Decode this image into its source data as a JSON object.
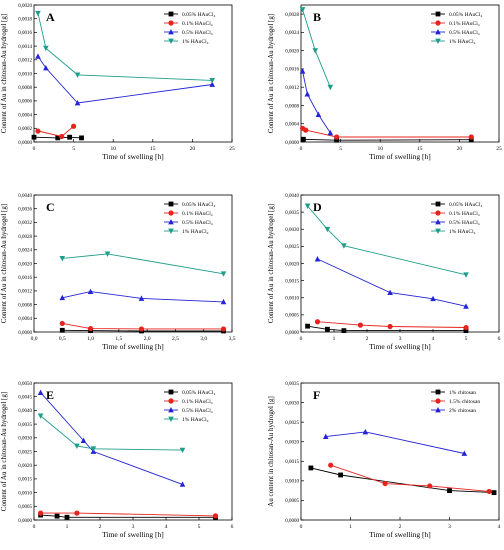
{
  "chart_data": [
    {
      "type": "line",
      "panel_label": "A",
      "xlabel": "Time of swelling [h]",
      "ylabel": "Content of Au in chitosan-Au hydrogel [g]",
      "xlim": [
        0,
        25
      ],
      "ylim": [
        0,
        0.002
      ],
      "xticks": [
        0,
        5,
        10,
        15,
        20,
        25
      ],
      "yticks": [
        0,
        0.0002,
        0.0004,
        0.0006,
        0.0008,
        0.001,
        0.0012,
        0.0014,
        0.0016,
        0.0018,
        0.002
      ],
      "ytick_labels": [
        "0,0000",
        "0,0002",
        "0,0004",
        "0,0006",
        "0,0008",
        "0,0010",
        "0,0012",
        "0,0014",
        "0,0016",
        "0,0018",
        "0,0020"
      ],
      "legend": "top-right",
      "series": [
        {
          "name": "0.05% HAuCl₄",
          "marker": "square",
          "color": "#000000",
          "x": [
            0,
            3,
            4.5,
            6
          ],
          "y": [
            7e-05,
            6e-05,
            7e-05,
            6e-05
          ]
        },
        {
          "name": "0.1% HAuCl₄",
          "marker": "circle",
          "color": "#e8231d",
          "x": [
            0.5,
            3.5,
            5
          ],
          "y": [
            0.00016,
            8e-05,
            0.00023
          ]
        },
        {
          "name": "0.5% HAuCl₄",
          "marker": "triangle-up",
          "color": "#2424d6",
          "x": [
            0.5,
            1.5,
            5.5,
            22.5
          ],
          "y": [
            0.00125,
            0.00108,
            0.00057,
            0.00084
          ]
        },
        {
          "name": "1% HAuCl₄",
          "marker": "triangle-down",
          "color": "#1e9e8a",
          "x": [
            0.5,
            1.5,
            5.5,
            22.5
          ],
          "y": [
            0.00188,
            0.00137,
            0.00098,
            0.0009
          ]
        }
      ]
    },
    {
      "type": "line",
      "panel_label": "B",
      "xlabel": "Time of swelling [h]",
      "ylabel": "Content of Au in chitosan-Au hydrogel [g]",
      "xlim": [
        0,
        25
      ],
      "ylim": [
        0,
        0.003
      ],
      "xticks": [
        0,
        5,
        10,
        15,
        20,
        25
      ],
      "yticks": [
        0,
        0.0004,
        0.0008,
        0.0012,
        0.0016,
        0.002,
        0.0024,
        0.0028
      ],
      "ytick_labels": [
        "0,0000",
        "0,0004",
        "0,0008",
        "0,0012",
        "0,0016",
        "0,0020",
        "0,0024",
        "0,0028"
      ],
      "legend": "top-right",
      "series": [
        {
          "name": "0.05% HAuCl₄",
          "marker": "square",
          "color": "#000000",
          "x": [
            0.3,
            4.5,
            21.5
          ],
          "y": [
            6e-05,
            4e-05,
            5e-05
          ]
        },
        {
          "name": "0.1% HAuCl₄",
          "marker": "circle",
          "color": "#e8231d",
          "x": [
            0.2,
            0.6,
            4.5,
            21.5
          ],
          "y": [
            0.0003,
            0.00026,
            0.00011,
            0.00011
          ]
        },
        {
          "name": "0.5% HAuCl₄",
          "marker": "triangle-up",
          "color": "#2424d6",
          "x": [
            0.2,
            0.8,
            2.2,
            3.7
          ],
          "y": [
            0.00155,
            0.00105,
            0.0006,
            0.0002
          ]
        },
        {
          "name": "1% HAuCl₄",
          "marker": "triangle-down",
          "color": "#1e9e8a",
          "x": [
            0.2,
            1.8,
            3.7
          ],
          "y": [
            0.0029,
            0.002,
            0.0012
          ]
        }
      ]
    },
    {
      "type": "line",
      "panel_label": "C",
      "xlabel": "Time of swelling [h]",
      "ylabel": "Content of Au in chitosan-Au hydrogel [g]",
      "xlim": [
        0,
        3.5
      ],
      "ylim": [
        0,
        0.004
      ],
      "xticks": [
        0,
        0.5,
        1,
        1.5,
        2,
        2.5,
        3,
        3.5
      ],
      "xtick_labels": [
        "0,0",
        "0,5",
        "1,0",
        "1,5",
        "2,0",
        "2,5",
        "3,0",
        "3,5"
      ],
      "yticks": [
        0,
        0.0004,
        0.0008,
        0.0012,
        0.0016,
        0.002,
        0.0024,
        0.0028,
        0.0032,
        0.0036,
        0.004
      ],
      "ytick_labels": [
        "0,0000",
        "0,0004",
        "0,0008",
        "0,0012",
        "0,0016",
        "0,0020",
        "0,0024",
        "0,0028",
        "0,0032",
        "0,0036",
        "0,0040"
      ],
      "legend": "top-right",
      "series": [
        {
          "name": "0.05% HAuCl₄",
          "marker": "square",
          "color": "#000000",
          "x": [
            0.5,
            1,
            1.9,
            3.35
          ],
          "y": [
            5e-05,
            4e-05,
            3e-05,
            3e-05
          ]
        },
        {
          "name": "0.1% HAuCl₄",
          "marker": "circle",
          "color": "#e8231d",
          "x": [
            0.5,
            1,
            1.9,
            3.35
          ],
          "y": [
            0.00025,
            0.0001,
            9e-05,
            9e-05
          ]
        },
        {
          "name": "0.5% HAuCl₄",
          "marker": "triangle-up",
          "color": "#2424d6",
          "x": [
            0.5,
            1,
            1.9,
            3.35
          ],
          "y": [
            0.001,
            0.00118,
            0.00098,
            0.00088
          ]
        },
        {
          "name": "1% HAuCl₄",
          "marker": "triangle-down",
          "color": "#1e9e8a",
          "x": [
            0.5,
            1.3,
            3.35
          ],
          "y": [
            0.00215,
            0.00228,
            0.0017
          ]
        }
      ]
    },
    {
      "type": "line",
      "panel_label": "D",
      "xlabel": "Time of swelling [h]",
      "ylabel": "Content of Au in chitosan-Au hydrogel [g]",
      "xlim": [
        0,
        6
      ],
      "ylim": [
        0,
        0.004
      ],
      "xticks": [
        0,
        1,
        2,
        3,
        4,
        5,
        6
      ],
      "yticks": [
        0,
        0.0005,
        0.001,
        0.0015,
        0.002,
        0.0025,
        0.003,
        0.0035,
        0.004
      ],
      "ytick_labels": [
        "0,0000",
        "0,0005",
        "0,0010",
        "0,0015",
        "0,0020",
        "0,0025",
        "0,0030",
        "0,0035",
        "0,0040"
      ],
      "legend": "top-right",
      "series": [
        {
          "name": "0.05% HAuCl₄",
          "marker": "square",
          "color": "#000000",
          "x": [
            0.2,
            0.8,
            1.3,
            5
          ],
          "y": [
            0.00017,
            8e-05,
            4e-05,
            4e-05
          ]
        },
        {
          "name": "0.1% HAuCl₄",
          "marker": "circle",
          "color": "#e8231d",
          "x": [
            0.5,
            1.8,
            2.7,
            5
          ],
          "y": [
            0.0003,
            0.0002,
            0.00016,
            0.00013
          ]
        },
        {
          "name": "0.5% HAuCl₄",
          "marker": "triangle-up",
          "color": "#2424d6",
          "x": [
            0.5,
            2.7,
            4,
            5
          ],
          "y": [
            0.00213,
            0.00115,
            0.00097,
            0.00075
          ]
        },
        {
          "name": "1% HAuCl₄",
          "marker": "triangle-down",
          "color": "#1e9e8a",
          "x": [
            0.2,
            0.8,
            1.3,
            5
          ],
          "y": [
            0.00368,
            0.003,
            0.00252,
            0.00167
          ]
        }
      ]
    },
    {
      "type": "line",
      "panel_label": "E",
      "xlabel": "Time of swelling [h]",
      "ylabel": "Content of Au in chitosan-Au hydrogel [g]",
      "xlim": [
        0,
        6
      ],
      "ylim": [
        0,
        0.005
      ],
      "xticks": [
        0,
        1,
        2,
        3,
        4,
        5,
        6
      ],
      "yticks": [
        0,
        0.0005,
        0.001,
        0.0015,
        0.002,
        0.0025,
        0.003,
        0.0035,
        0.004,
        0.0045,
        0.005
      ],
      "ytick_labels": [
        "0,0000",
        "0,0005",
        "0,0010",
        "0,0015",
        "0,0020",
        "0,0025",
        "0,0030",
        "0,0035",
        "0,0040",
        "0,0045",
        "0,0050"
      ],
      "legend": "top-right",
      "series": [
        {
          "name": "0.05% HAuCl₄",
          "marker": "square",
          "color": "#000000",
          "x": [
            0.2,
            0.7,
            1,
            5.5
          ],
          "y": [
            0.00018,
            0.00014,
            0.0001,
            0.0001
          ]
        },
        {
          "name": "0.1% HAuCl₄",
          "marker": "circle",
          "color": "#e8231d",
          "x": [
            0.2,
            1.3,
            5.5
          ],
          "y": [
            0.00025,
            0.00025,
            0.00015
          ]
        },
        {
          "name": "0.5% HAuCl₄",
          "marker": "triangle-up",
          "color": "#2424d6",
          "x": [
            0.2,
            1.5,
            1.8,
            4.5
          ],
          "y": [
            0.00465,
            0.0029,
            0.0025,
            0.0013
          ]
        },
        {
          "name": "1% HAuCl₄",
          "marker": "triangle-down",
          "color": "#1e9e8a",
          "x": [
            0.2,
            1.3,
            1.8,
            4.5
          ],
          "y": [
            0.0038,
            0.0027,
            0.0026,
            0.00255
          ]
        }
      ]
    },
    {
      "type": "line",
      "panel_label": "F",
      "xlabel": "Time of swelling [h]",
      "ylabel": "Au content in chitosan-Au hydrogel [g]",
      "xlim": [
        0,
        4
      ],
      "ylim": [
        0,
        0.0035
      ],
      "xticks": [
        0,
        1,
        2,
        3,
        4
      ],
      "yticks": [
        0,
        0.0005,
        0.001,
        0.0015,
        0.002,
        0.0025,
        0.003,
        0.0035
      ],
      "ytick_labels": [
        "0,0000",
        "0,0005",
        "0,0010",
        "0,0015",
        "0,0020",
        "0,0025",
        "0,0030",
        "0,0035"
      ],
      "legend": "top-right",
      "series": [
        {
          "name": "1% chitosan",
          "marker": "square",
          "color": "#000000",
          "x": [
            0.2,
            0.8,
            3,
            3.9
          ],
          "y": [
            0.00133,
            0.00115,
            0.00075,
            0.0007
          ]
        },
        {
          "name": "1.5% chitosan",
          "marker": "circle",
          "color": "#e8231d",
          "x": [
            0.6,
            1.7,
            2.6,
            3.8
          ],
          "y": [
            0.0014,
            0.00093,
            0.00087,
            0.00073
          ]
        },
        {
          "name": "2% chitosan",
          "marker": "triangle-up",
          "color": "#2424d6",
          "x": [
            0.5,
            1.3,
            3.3
          ],
          "y": [
            0.00213,
            0.00225,
            0.0017
          ]
        }
      ]
    }
  ]
}
